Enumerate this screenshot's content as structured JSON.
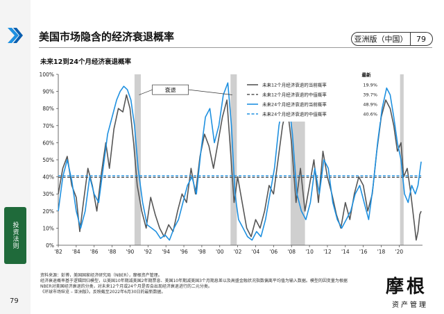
{
  "header": {
    "title": "美国市场隐含的经济衰退概率",
    "region": "亚洲版（中国）",
    "page": "79"
  },
  "sidebar": {
    "tab_label": "投资法则",
    "page": "79"
  },
  "chart_data": {
    "type": "line",
    "title": "未来12到24个月经济衰退概率",
    "xlabel": "",
    "ylabel": "",
    "xlim": [
      1982,
      2022.6
    ],
    "ylim": [
      0,
      100
    ],
    "y_ticks": [
      "0%",
      "10%",
      "20%",
      "30%",
      "40%",
      "50%",
      "60%",
      "70%",
      "80%",
      "90%",
      "100%"
    ],
    "x_ticks": [
      {
        "x": 1982,
        "label": "'82"
      },
      {
        "x": 1984,
        "label": "'84"
      },
      {
        "x": 1986,
        "label": "'86"
      },
      {
        "x": 1988,
        "label": "'88"
      },
      {
        "x": 1990,
        "label": "'90"
      },
      {
        "x": 1992,
        "label": "'92"
      },
      {
        "x": 1994,
        "label": "'94"
      },
      {
        "x": 1996,
        "label": "'96"
      },
      {
        "x": 1998,
        "label": "'98"
      },
      {
        "x": 2000,
        "label": "'00"
      },
      {
        "x": 2002,
        "label": "'02"
      },
      {
        "x": 2004,
        "label": "'04"
      },
      {
        "x": 2006,
        "label": "'06"
      },
      {
        "x": 2008,
        "label": "'08"
      },
      {
        "x": 2010,
        "label": "'10"
      },
      {
        "x": 2012,
        "label": "'12"
      },
      {
        "x": 2014,
        "label": "'14"
      },
      {
        "x": 2016,
        "label": "'16"
      },
      {
        "x": 2018,
        "label": "'18"
      },
      {
        "x": 2020,
        "label": "'20"
      }
    ],
    "recessions": [
      {
        "start": 1990.5,
        "end": 1991.2
      },
      {
        "start": 2001.2,
        "end": 2001.9
      },
      {
        "start": 2007.9,
        "end": 2009.5
      },
      {
        "start": 2020.1,
        "end": 2020.5
      }
    ],
    "annotation": {
      "label": "衰退",
      "x": 1994.5,
      "y": 91
    },
    "legend_header": "最新",
    "series": [
      {
        "name": "未来12个月经济衰退的当前概率",
        "latest": "19.9%",
        "color": "#555555",
        "style": "solid",
        "points": [
          [
            1982.0,
            30
          ],
          [
            1982.5,
            45
          ],
          [
            1983.0,
            52
          ],
          [
            1983.5,
            35
          ],
          [
            1984.0,
            28
          ],
          [
            1984.4,
            8
          ],
          [
            1984.8,
            25
          ],
          [
            1985.3,
            45
          ],
          [
            1985.8,
            35
          ],
          [
            1986.3,
            20
          ],
          [
            1986.8,
            42
          ],
          [
            1987.3,
            60
          ],
          [
            1987.7,
            45
          ],
          [
            1988.2,
            68
          ],
          [
            1988.7,
            80
          ],
          [
            1989.2,
            78
          ],
          [
            1989.6,
            88
          ],
          [
            1990.0,
            80
          ],
          [
            1990.4,
            60
          ],
          [
            1990.8,
            35
          ],
          [
            1991.3,
            20
          ],
          [
            1991.8,
            10
          ],
          [
            1992.3,
            28
          ],
          [
            1992.8,
            18
          ],
          [
            1993.3,
            10
          ],
          [
            1993.8,
            5
          ],
          [
            1994.3,
            12
          ],
          [
            1994.8,
            8
          ],
          [
            1995.3,
            20
          ],
          [
            1995.8,
            30
          ],
          [
            1996.3,
            25
          ],
          [
            1996.8,
            45
          ],
          [
            1997.3,
            30
          ],
          [
            1997.8,
            52
          ],
          [
            1998.3,
            65
          ],
          [
            1998.8,
            58
          ],
          [
            1999.3,
            45
          ],
          [
            1999.8,
            60
          ],
          [
            2000.3,
            75
          ],
          [
            2000.8,
            85
          ],
          [
            2001.2,
            55
          ],
          [
            2001.6,
            25
          ],
          [
            2002.0,
            40
          ],
          [
            2002.5,
            25
          ],
          [
            2003.0,
            10
          ],
          [
            2003.5,
            5
          ],
          [
            2004.0,
            15
          ],
          [
            2004.5,
            10
          ],
          [
            2005.0,
            20
          ],
          [
            2005.5,
            35
          ],
          [
            2006.0,
            30
          ],
          [
            2006.5,
            50
          ],
          [
            2007.0,
            70
          ],
          [
            2007.5,
            82
          ],
          [
            2008.0,
            60
          ],
          [
            2008.5,
            25
          ],
          [
            2009.0,
            45
          ],
          [
            2009.5,
            20
          ],
          [
            2010.0,
            35
          ],
          [
            2010.5,
            50
          ],
          [
            2011.0,
            25
          ],
          [
            2011.5,
            55
          ],
          [
            2012.0,
            40
          ],
          [
            2012.5,
            30
          ],
          [
            2013.0,
            18
          ],
          [
            2013.5,
            10
          ],
          [
            2014.0,
            25
          ],
          [
            2014.5,
            15
          ],
          [
            2015.0,
            30
          ],
          [
            2015.5,
            40
          ],
          [
            2016.0,
            35
          ],
          [
            2016.5,
            20
          ],
          [
            2017.0,
            30
          ],
          [
            2017.5,
            55
          ],
          [
            2018.0,
            75
          ],
          [
            2018.5,
            85
          ],
          [
            2019.0,
            80
          ],
          [
            2019.4,
            70
          ],
          [
            2019.8,
            55
          ],
          [
            2020.2,
            60
          ],
          [
            2020.5,
            40
          ],
          [
            2020.9,
            45
          ],
          [
            2021.3,
            30
          ],
          [
            2021.7,
            12
          ],
          [
            2021.9,
            3
          ],
          [
            2022.1,
            8
          ],
          [
            2022.3,
            18
          ],
          [
            2022.45,
            19.9
          ]
        ]
      },
      {
        "name": "未来12个月经济衰退的中值概率",
        "latest": "39.7%",
        "color": "#555555",
        "style": "dashed",
        "points": [
          [
            1982.0,
            39.7
          ],
          [
            2022.45,
            39.7
          ]
        ]
      },
      {
        "name": "未来24个月经济衰退的当前概率",
        "latest": "48.9%",
        "color": "#1e90e0",
        "style": "solid",
        "points": [
          [
            1982.0,
            20
          ],
          [
            1982.5,
            40
          ],
          [
            1983.0,
            50
          ],
          [
            1983.5,
            38
          ],
          [
            1984.0,
            20
          ],
          [
            1984.5,
            10
          ],
          [
            1985.0,
            20
          ],
          [
            1985.5,
            40
          ],
          [
            1986.0,
            30
          ],
          [
            1986.5,
            25
          ],
          [
            1987.0,
            45
          ],
          [
            1987.5,
            65
          ],
          [
            1988.0,
            75
          ],
          [
            1988.5,
            85
          ],
          [
            1988.9,
            90
          ],
          [
            1989.3,
            93
          ],
          [
            1989.7,
            91
          ],
          [
            1990.1,
            85
          ],
          [
            1990.5,
            70
          ],
          [
            1990.9,
            45
          ],
          [
            1991.4,
            25
          ],
          [
            1991.9,
            12
          ],
          [
            1992.4,
            10
          ],
          [
            1992.9,
            8
          ],
          [
            1993.4,
            4
          ],
          [
            1993.9,
            6
          ],
          [
            1994.4,
            3
          ],
          [
            1994.9,
            10
          ],
          [
            1995.4,
            15
          ],
          [
            1995.9,
            25
          ],
          [
            1996.4,
            35
          ],
          [
            1996.9,
            40
          ],
          [
            1997.4,
            30
          ],
          [
            1997.9,
            55
          ],
          [
            1998.4,
            75
          ],
          [
            1998.9,
            80
          ],
          [
            1999.4,
            60
          ],
          [
            1999.9,
            70
          ],
          [
            2000.4,
            88
          ],
          [
            2000.9,
            95
          ],
          [
            2001.3,
            70
          ],
          [
            2001.7,
            30
          ],
          [
            2002.1,
            15
          ],
          [
            2002.6,
            10
          ],
          [
            2003.1,
            5
          ],
          [
            2003.6,
            3
          ],
          [
            2004.1,
            8
          ],
          [
            2004.6,
            5
          ],
          [
            2005.1,
            15
          ],
          [
            2005.6,
            30
          ],
          [
            2006.1,
            45
          ],
          [
            2006.6,
            70
          ],
          [
            2007.1,
            85
          ],
          [
            2007.6,
            88
          ],
          [
            2008.1,
            65
          ],
          [
            2008.6,
            30
          ],
          [
            2009.1,
            20
          ],
          [
            2009.6,
            15
          ],
          [
            2010.1,
            25
          ],
          [
            2010.6,
            45
          ],
          [
            2011.1,
            30
          ],
          [
            2011.6,
            50
          ],
          [
            2012.1,
            45
          ],
          [
            2012.6,
            25
          ],
          [
            2013.1,
            15
          ],
          [
            2013.6,
            10
          ],
          [
            2014.1,
            15
          ],
          [
            2014.6,
            20
          ],
          [
            2015.1,
            30
          ],
          [
            2015.6,
            35
          ],
          [
            2016.1,
            25
          ],
          [
            2016.6,
            15
          ],
          [
            2017.1,
            35
          ],
          [
            2017.6,
            60
          ],
          [
            2018.1,
            80
          ],
          [
            2018.6,
            92
          ],
          [
            2019.0,
            88
          ],
          [
            2019.4,
            75
          ],
          [
            2019.8,
            60
          ],
          [
            2020.2,
            50
          ],
          [
            2020.6,
            30
          ],
          [
            2021.0,
            25
          ],
          [
            2021.4,
            35
          ],
          [
            2021.8,
            30
          ],
          [
            2022.1,
            35
          ],
          [
            2022.45,
            48.9
          ]
        ]
      },
      {
        "name": "未来24个月经济衰退的中值概率",
        "latest": "40.6%",
        "color": "#1e90e0",
        "style": "dashed",
        "points": [
          [
            1982.0,
            40.6
          ],
          [
            2022.45,
            40.6
          ]
        ]
      }
    ]
  },
  "footnote": {
    "line1": "资料来源：彭博，美国国家经济研究局（NBER），摩根资产管理。",
    "line2": "经济衰退概率基于逻辑回归模型，以美国10年期减美国2年期票息、美国10年期减美国3个月期息差以及高盛金融状况指数偏离平均值为输入数据。模型的因变量为根据",
    "line3": "NBER对美国经济衰退的分类，对未来12个月或24个月是否会出现经济衰退进行的二元分类。",
    "line4": "《环球市场纵览 – 亚洲版》。反映截至2022年6月30日的最新数据。"
  },
  "brand": {
    "name": "摩根",
    "sub": "资产管理"
  }
}
